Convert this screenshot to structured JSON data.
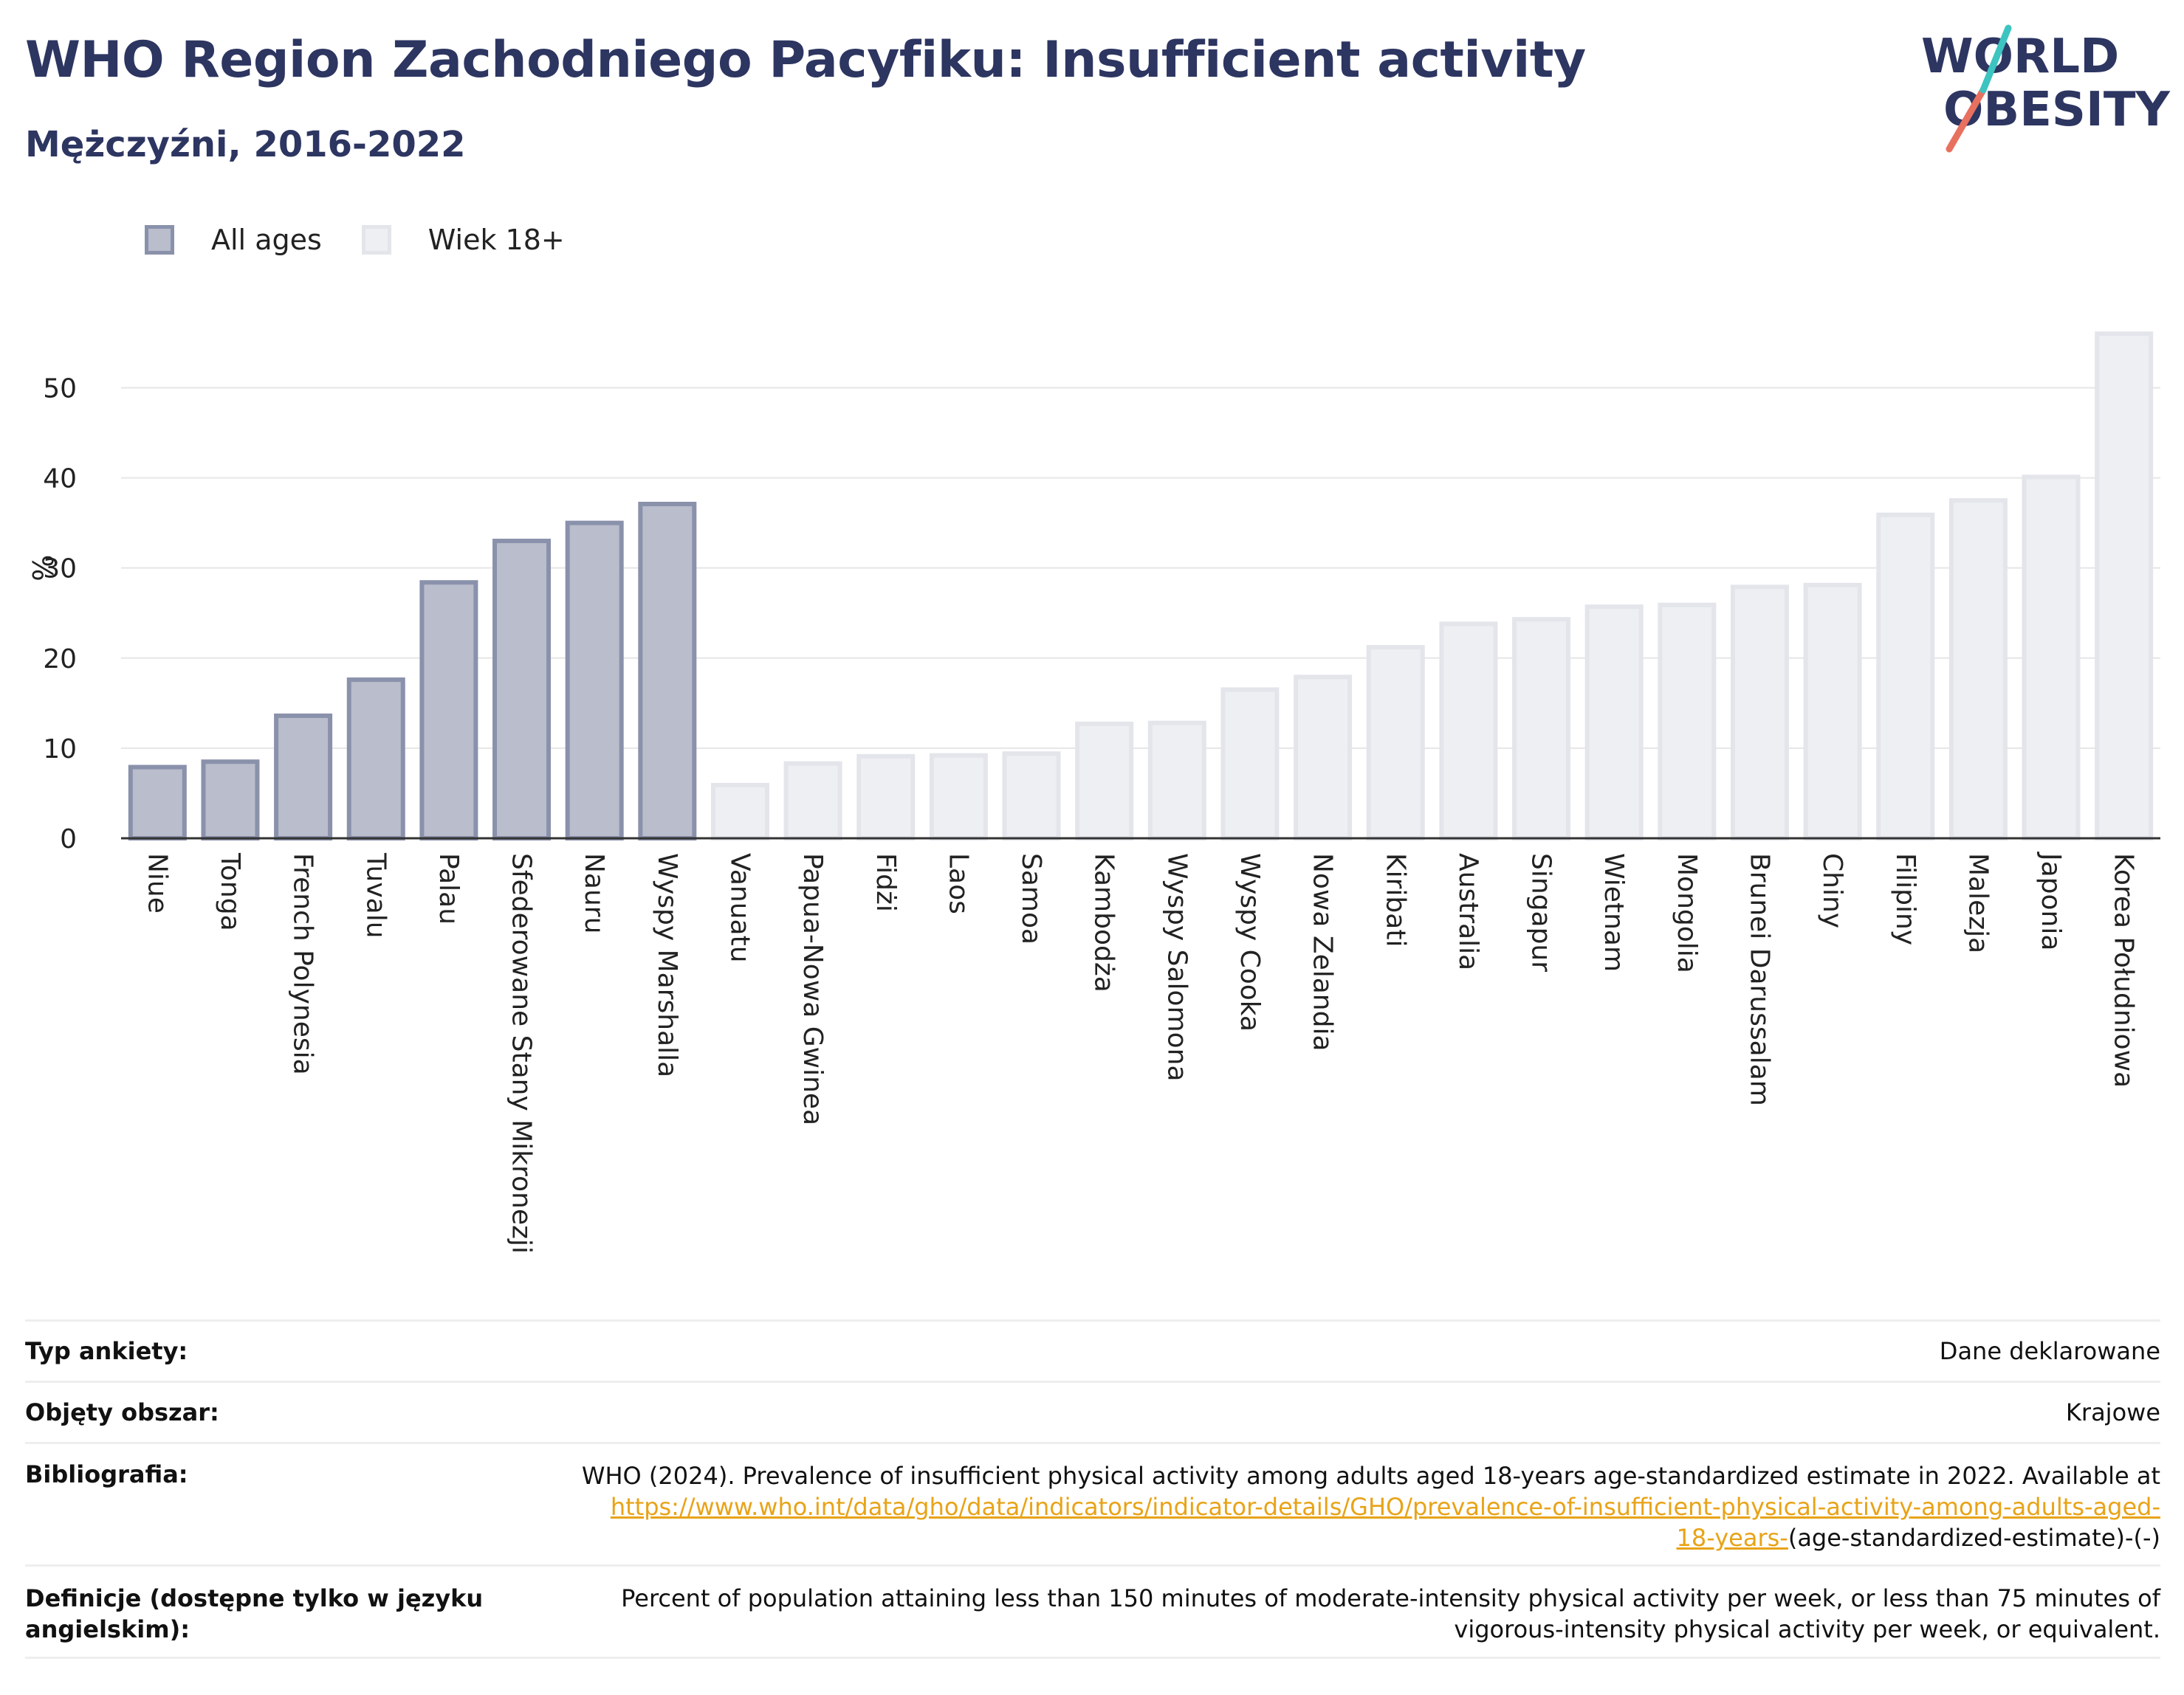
{
  "header": {
    "title": "WHO Region Zachodniego Pacyfiku: Insufficient activity",
    "subtitle": "Mężczyźni, 2016-2022"
  },
  "logo": {
    "line1": "WORLD",
    "line2": "OBESITY"
  },
  "legend": {
    "items": [
      "All ages",
      "Wiek 18+"
    ]
  },
  "colors": {
    "all_ages_fill": "#b9bdcc",
    "all_ages_border": "#8a91ab",
    "adult_fill": "#eeeff3",
    "adult_border": "#e3e5eb",
    "title": "#2d3561",
    "accent_teal": "#3cc4c0",
    "accent_red": "#e8705f",
    "link": "#e8a317"
  },
  "chart_data": {
    "type": "bar",
    "ylabel": "%",
    "xlabel": "",
    "ylim": [
      0,
      57
    ],
    "yticks": [
      0,
      10,
      20,
      30,
      40,
      50
    ],
    "grid": true,
    "legend_position": "top-left",
    "categories": [
      "Niue",
      "Tonga",
      "French Polynesia",
      "Tuvalu",
      "Palau",
      "Sfederowane Stany Mikronezji",
      "Nauru",
      "Wyspy Marshalla",
      "Vanuatu",
      "Papua-Nowa Gwinea",
      "Fidżi",
      "Laos",
      "Samoa",
      "Kambodża",
      "Wyspy Salomona",
      "Wyspy Cooka",
      "Nowa Zelandia",
      "Kiribati",
      "Australia",
      "Singapur",
      "Wietnam",
      "Mongolia",
      "Brunei Darussalam",
      "Chiny",
      "Filipiny",
      "Malezja",
      "Japonia",
      "Korea Południowa"
    ],
    "values": [
      7.9,
      8.5,
      13.6,
      17.6,
      28.4,
      33.0,
      35.0,
      37.1,
      5.9,
      8.3,
      9.1,
      9.2,
      9.4,
      12.7,
      12.8,
      16.5,
      17.9,
      21.2,
      23.8,
      24.3,
      25.7,
      25.9,
      27.9,
      28.1,
      35.9,
      37.5,
      40.1,
      56.0
    ],
    "series_index": [
      0,
      0,
      0,
      0,
      0,
      0,
      0,
      0,
      1,
      1,
      1,
      1,
      1,
      1,
      1,
      1,
      1,
      1,
      1,
      1,
      1,
      1,
      1,
      1,
      1,
      1,
      1,
      1
    ],
    "series": [
      {
        "name": "All ages"
      },
      {
        "name": "Wiek 18+"
      }
    ]
  },
  "meta": {
    "survey_type": {
      "label": "Typ ankiety:",
      "value": "Dane deklarowane"
    },
    "coverage": {
      "label": "Objęty obszar:",
      "value": "Krajowe"
    },
    "bibliography": {
      "label": "Bibliografia:",
      "text": "WHO (2024). Prevalence of insufficient physical activity among adults aged 18-years age-standardized estimate in 2022. Available at",
      "link_part1": "https://www.who.int/data/gho/data/indicators/indicator-details/GHO/prevalence-of-insufficient-physical-activity-among-adults-aged-",
      "link_part2": "18-years-",
      "suffix": "(age-standardized-estimate)-(-)"
    },
    "definitions": {
      "label_line1": "Definicje (dostępne tylko w języku",
      "label_line2": "angielskim):",
      "value_line1": "Percent of population attaining less than 150 minutes of moderate-intensity physical activity per week, or less than 75 minutes of",
      "value_line2": "vigorous-intensity physical activity per week, or equivalent."
    }
  }
}
